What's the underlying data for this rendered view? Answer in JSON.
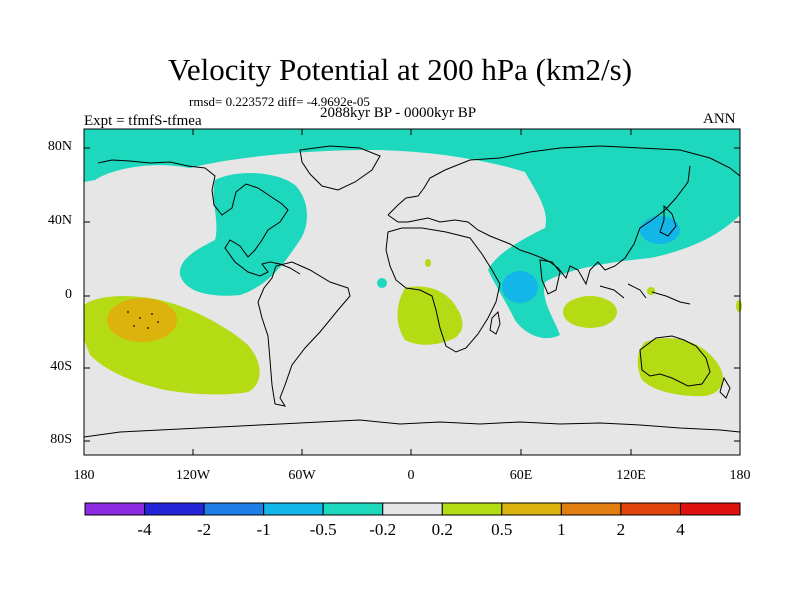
{
  "title": "Velocity Potential at 200 hPa (km2/s)",
  "stats": "rmsd= 0.223572 diff= -4.9692e-05",
  "experiment": "Expt = tfmfS-tfmea",
  "period": "2088kyr BP - 0000kyr BP",
  "season": "ANN",
  "lat_labels": [
    "80N",
    "40N",
    "0",
    "40S",
    "80S"
  ],
  "lon_labels": [
    "180",
    "120W",
    "60W",
    "0",
    "60E",
    "120E",
    "180"
  ],
  "colorbar": {
    "labels": [
      "-4",
      "-2",
      "-1",
      "-0.5",
      "-0.2",
      "0.2",
      "0.5",
      "1",
      "2",
      "4"
    ],
    "colors": [
      "#8b2be2",
      "#2424d8",
      "#1e7ee8",
      "#13b6e8",
      "#1ed8bd",
      "#e6e6e6",
      "#b4db14",
      "#dcb20c",
      "#e07e12",
      "#e0460c",
      "#e01010"
    ]
  },
  "map_colors": {
    "background": "#e6e6e6",
    "neg_weak": "#1ed8bd",
    "neg_mid": "#13b6e8",
    "pos_weak": "#b4db14",
    "pos_mid": "#dcb20c",
    "coast": "#000000"
  }
}
